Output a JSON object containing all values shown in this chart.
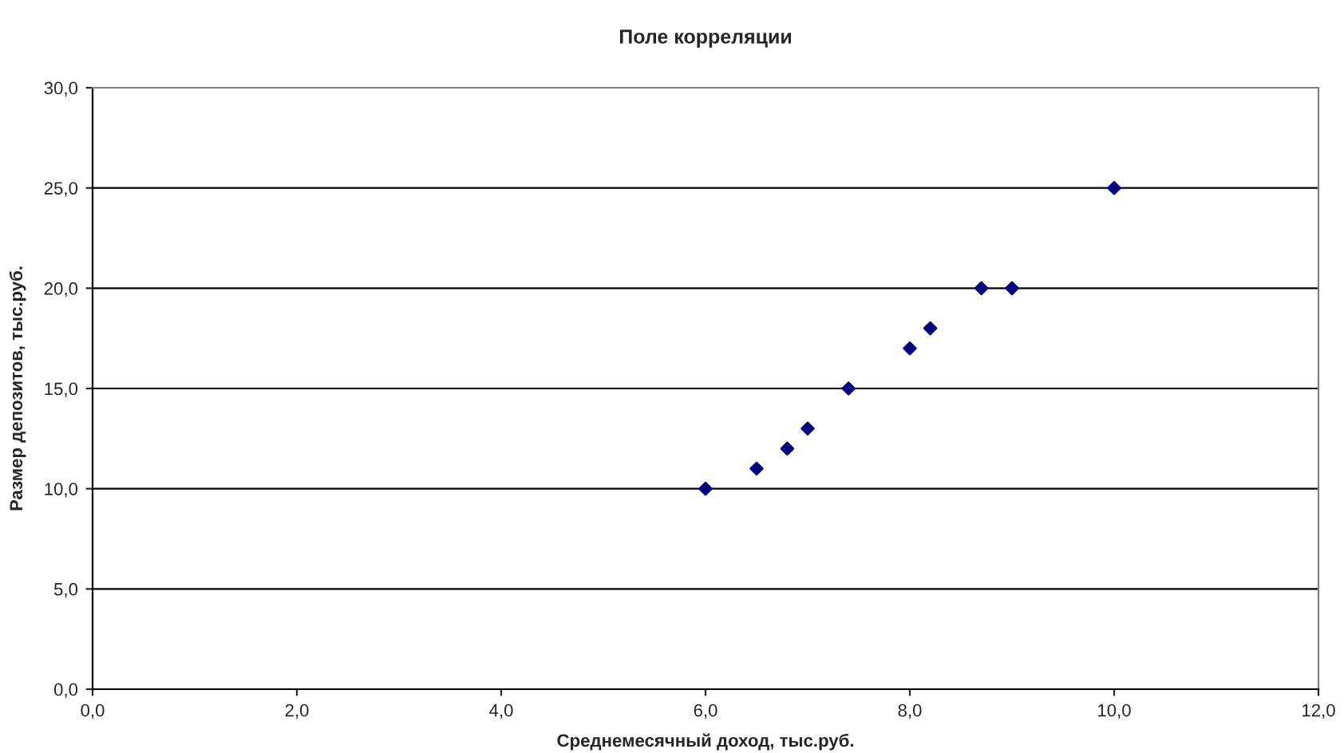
{
  "chart_data": {
    "type": "scatter",
    "title": "Поле корреляции",
    "xlabel": "Среднемесячный доход, тыс.руб.",
    "ylabel": "Размер депозитов, тыс.руб.",
    "x": [
      6,
      6.5,
      6.8,
      7,
      7.4,
      8,
      8.2,
      8.7,
      9,
      10
    ],
    "series": [
      {
        "color": "#000080",
        "values": [
          10,
          11,
          12,
          13,
          15,
          17,
          18,
          20,
          20,
          25
        ]
      }
    ],
    "xlim": [
      0,
      12
    ],
    "ylim": [
      0,
      30
    ],
    "xticks": [
      {
        "value": 0,
        "label": "0,0"
      },
      {
        "value": 2,
        "label": "2,0"
      },
      {
        "value": 4,
        "label": "4,0"
      },
      {
        "value": 6,
        "label": "6,0"
      },
      {
        "value": 8,
        "label": "8,0"
      },
      {
        "value": 10,
        "label": "10,0"
      },
      {
        "value": 12,
        "label": "12,0"
      }
    ],
    "yticks": [
      {
        "value": 0,
        "label": "0,0"
      },
      {
        "value": 5,
        "label": "5,0"
      },
      {
        "value": 10,
        "label": "10,0"
      },
      {
        "value": 15,
        "label": "15,0"
      },
      {
        "value": 20,
        "label": "20,0"
      },
      {
        "value": 25,
        "label": "25,0"
      },
      {
        "value": 30,
        "label": "30,0"
      }
    ],
    "grid": "y",
    "marker": "diamond",
    "legend": false
  }
}
